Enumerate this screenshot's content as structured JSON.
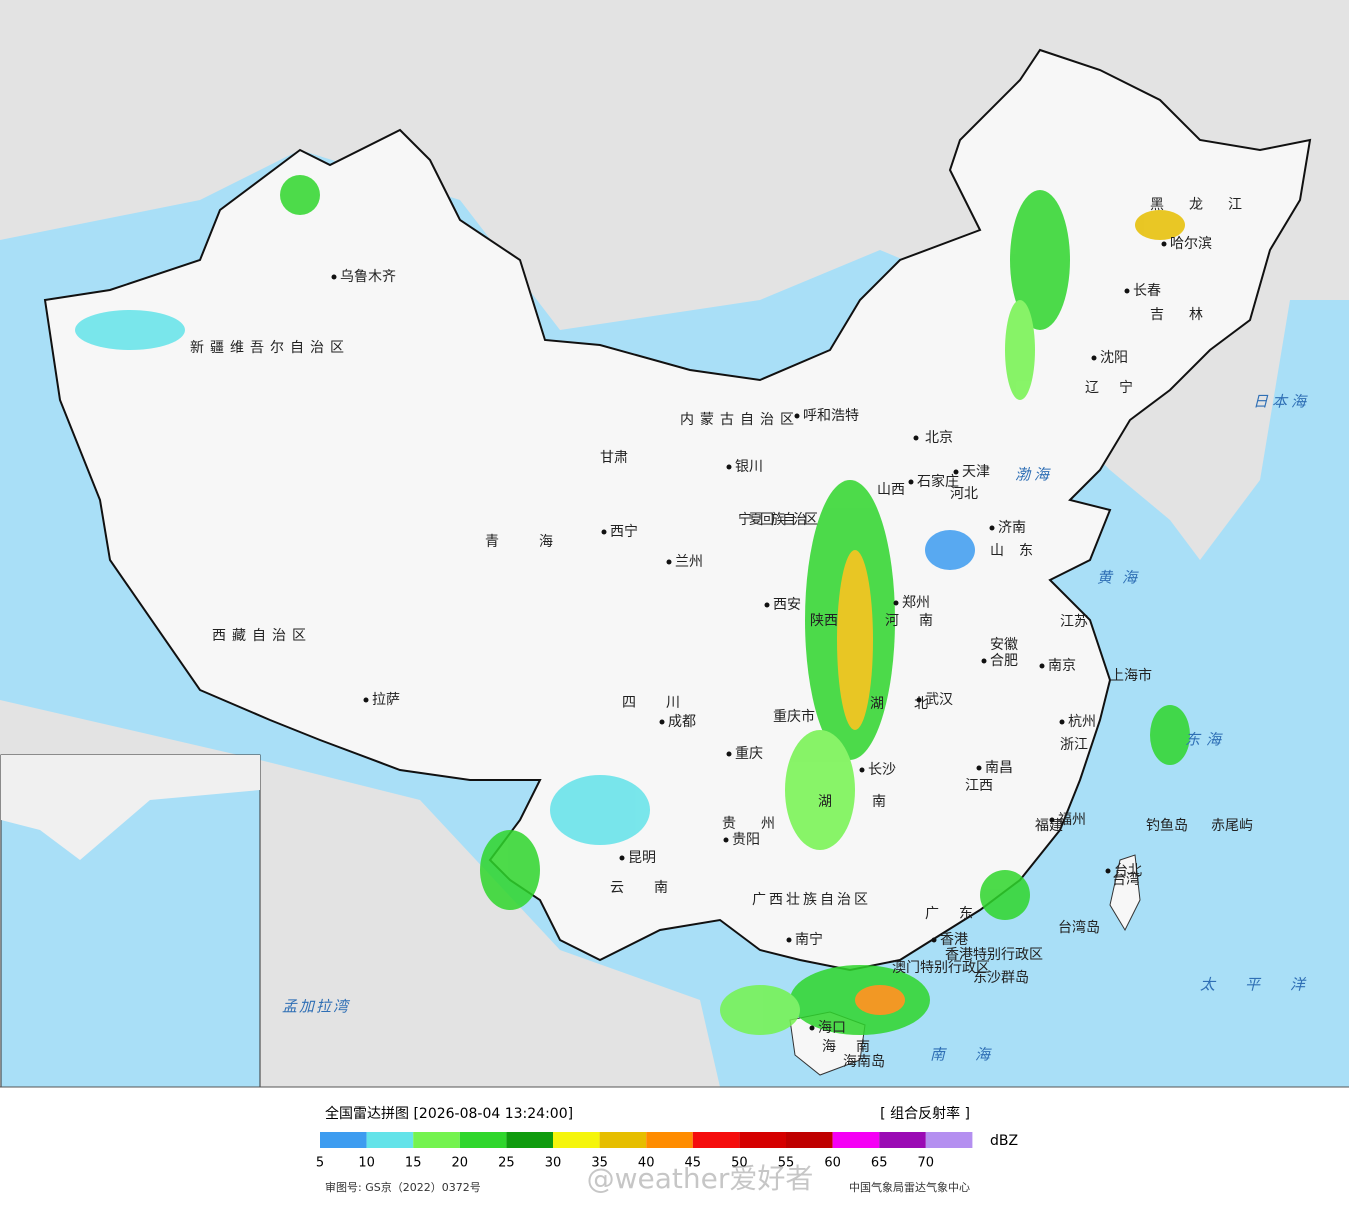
{
  "header": {
    "title": "全国雷达拼图 [2026-08-04 13:24:00]",
    "product": "[ 组合反射率 ]"
  },
  "legend": {
    "unit": "dBZ",
    "ticks": [
      5,
      10,
      15,
      20,
      25,
      30,
      35,
      40,
      45,
      50,
      55,
      60,
      65,
      70
    ],
    "colors": [
      "#3d9cf0",
      "#63e3e9",
      "#74f34f",
      "#2fd62c",
      "#0f9b0e",
      "#f5f50c",
      "#e6be00",
      "#ff8c00",
      "#f50d0d",
      "#d50000",
      "#bf0000",
      "#f500f5",
      "#9a0ab4",
      "#b48ff0"
    ]
  },
  "footer": {
    "approval": "审图号: GS京（2022）0372号",
    "agency": "中国气象局雷达气象中心",
    "watermark": "@weather爱好者"
  },
  "map": {
    "labels": [
      "乌鲁木齐",
      "新疆维吾尔自治区",
      "西藏自治区",
      "拉萨",
      "青海",
      "西宁",
      "甘肃",
      "兰州",
      "内蒙古自治区",
      "呼和浩特",
      "银川",
      "宁夏回族自治区",
      "北京",
      "天津",
      "石家庄",
      "河北",
      "山西",
      "济南",
      "山东",
      "郑州",
      "河南",
      "西安",
      "陕西",
      "四川",
      "成都",
      "重庆",
      "重庆市",
      "贵州",
      "贵阳",
      "云南",
      "昆明",
      "广西壮族自治区",
      "南宁",
      "广东",
      "香港",
      "香港特别行政区",
      "澳门特别行政区",
      "海南",
      "海口",
      "湖南",
      "长沙",
      "湖北",
      "武汉",
      "江西",
      "南昌",
      "安徽",
      "合肥",
      "江苏",
      "南京",
      "上海市",
      "浙江",
      "杭州",
      "福建",
      "福州",
      "台湾",
      "台北",
      "黑龙江",
      "哈尔滨",
      "吉林",
      "长春",
      "辽宁",
      "沈阳",
      "日本海",
      "渤海",
      "黄海",
      "东海",
      "南海",
      "太平洋",
      "孟加拉湾",
      "钓鱼岛",
      "赤尾屿",
      "东沙群岛",
      "台湾岛",
      "海南岛"
    ]
  }
}
